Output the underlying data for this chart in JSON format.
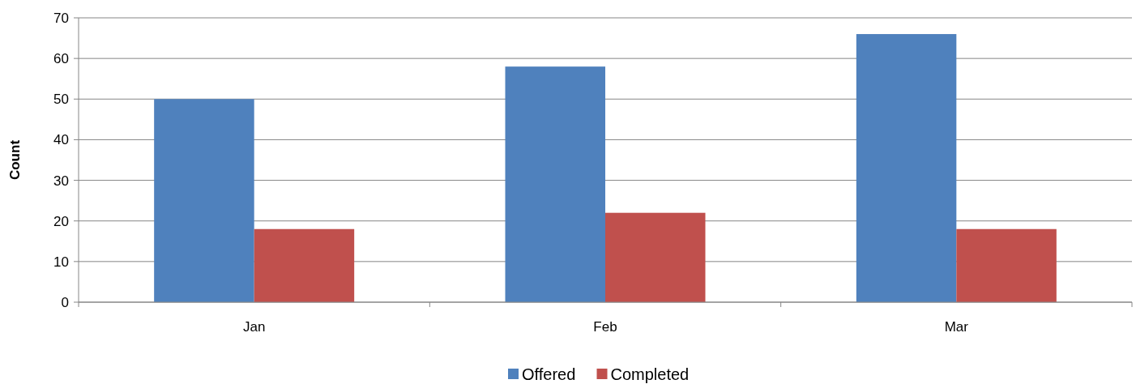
{
  "chart_data": {
    "type": "bar",
    "ylabel": "Count",
    "categories": [
      "Jan",
      "Feb",
      "Mar"
    ],
    "series": [
      {
        "name": "Offered",
        "color": "#4f81bd",
        "values": [
          50,
          58,
          66
        ]
      },
      {
        "name": "Completed",
        "color": "#c0504d",
        "values": [
          18,
          22,
          18
        ]
      }
    ],
    "ylim": [
      0,
      70
    ],
    "yticks": [
      0,
      10,
      20,
      30,
      40,
      50,
      60,
      70
    ],
    "grid": "y",
    "legend": "bottom"
  }
}
